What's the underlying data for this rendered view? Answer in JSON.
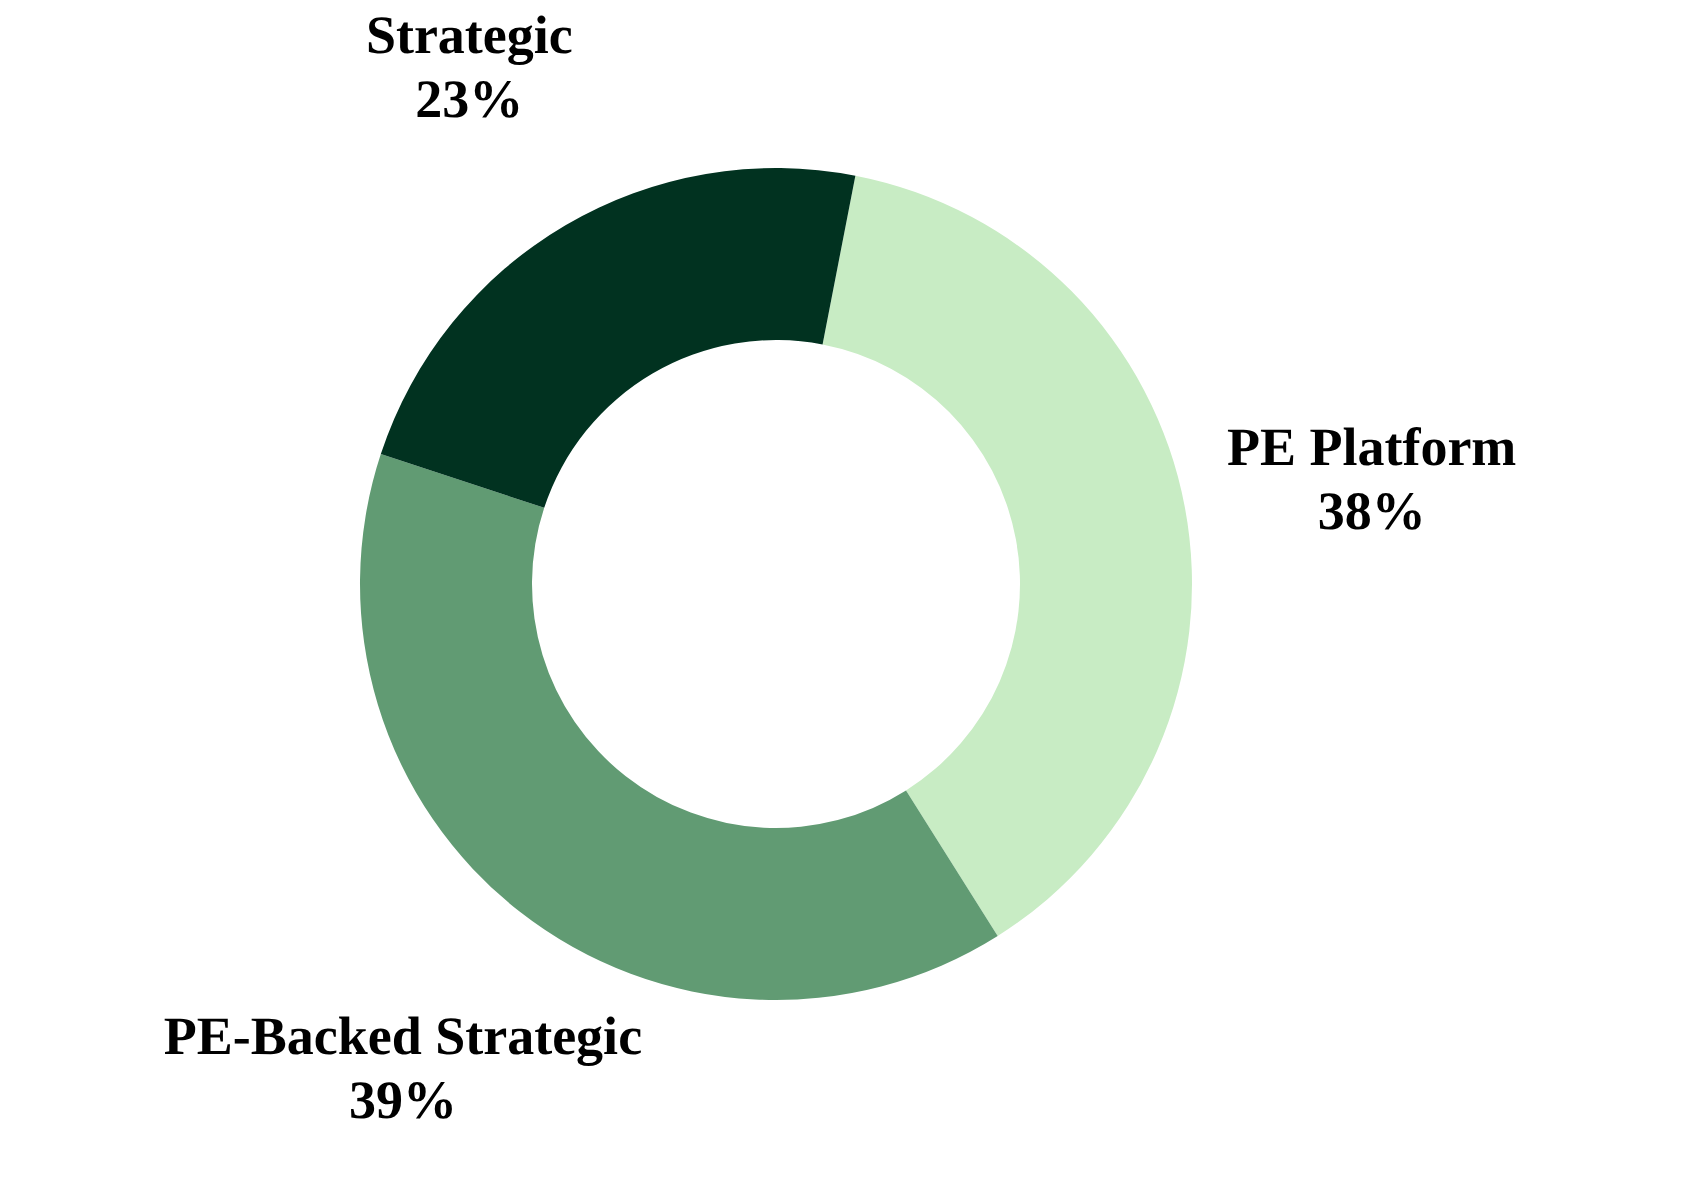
{
  "chart_data": {
    "type": "donut",
    "categories": [
      "PE Platform",
      "PE-Backed Strategic",
      "Strategic"
    ],
    "values": [
      38,
      39,
      23
    ],
    "colors": [
      "#c8ecc4",
      "#619b73",
      "#013220"
    ],
    "value_labels": [
      "38%",
      "39%",
      "23%"
    ]
  }
}
